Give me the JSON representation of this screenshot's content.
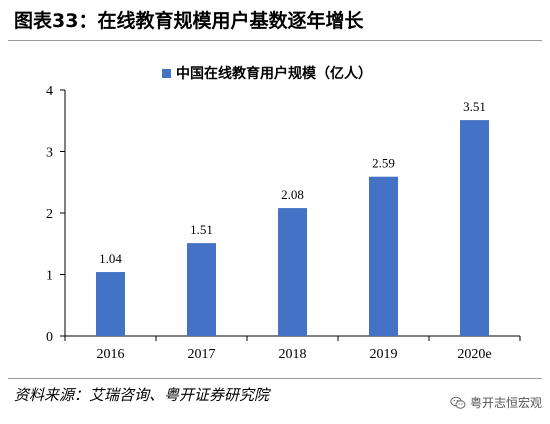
{
  "header": {
    "title": "图表33：在线教育规模用户基数逐年增长"
  },
  "footer": {
    "source": "资料来源：艾瑞咨询、粤开证券研究院",
    "watermark": "粤开志恒宏观",
    "watermark_icon": "wechat-icon"
  },
  "chart_data": {
    "type": "bar",
    "categories": [
      "2016",
      "2017",
      "2018",
      "2019",
      "2020e"
    ],
    "series": [
      {
        "name": "中国在线教育用户规模（亿人）",
        "values": [
          1.04,
          1.51,
          2.08,
          2.59,
          3.51
        ],
        "color": "#4472C4"
      }
    ],
    "data_labels": [
      "1.04",
      "1.51",
      "2.08",
      "2.59",
      "3.51"
    ],
    "ylim": [
      0,
      4
    ],
    "yticks": [
      "0",
      "1",
      "2",
      "3",
      "4"
    ],
    "legend": "top-center",
    "grid": false
  }
}
